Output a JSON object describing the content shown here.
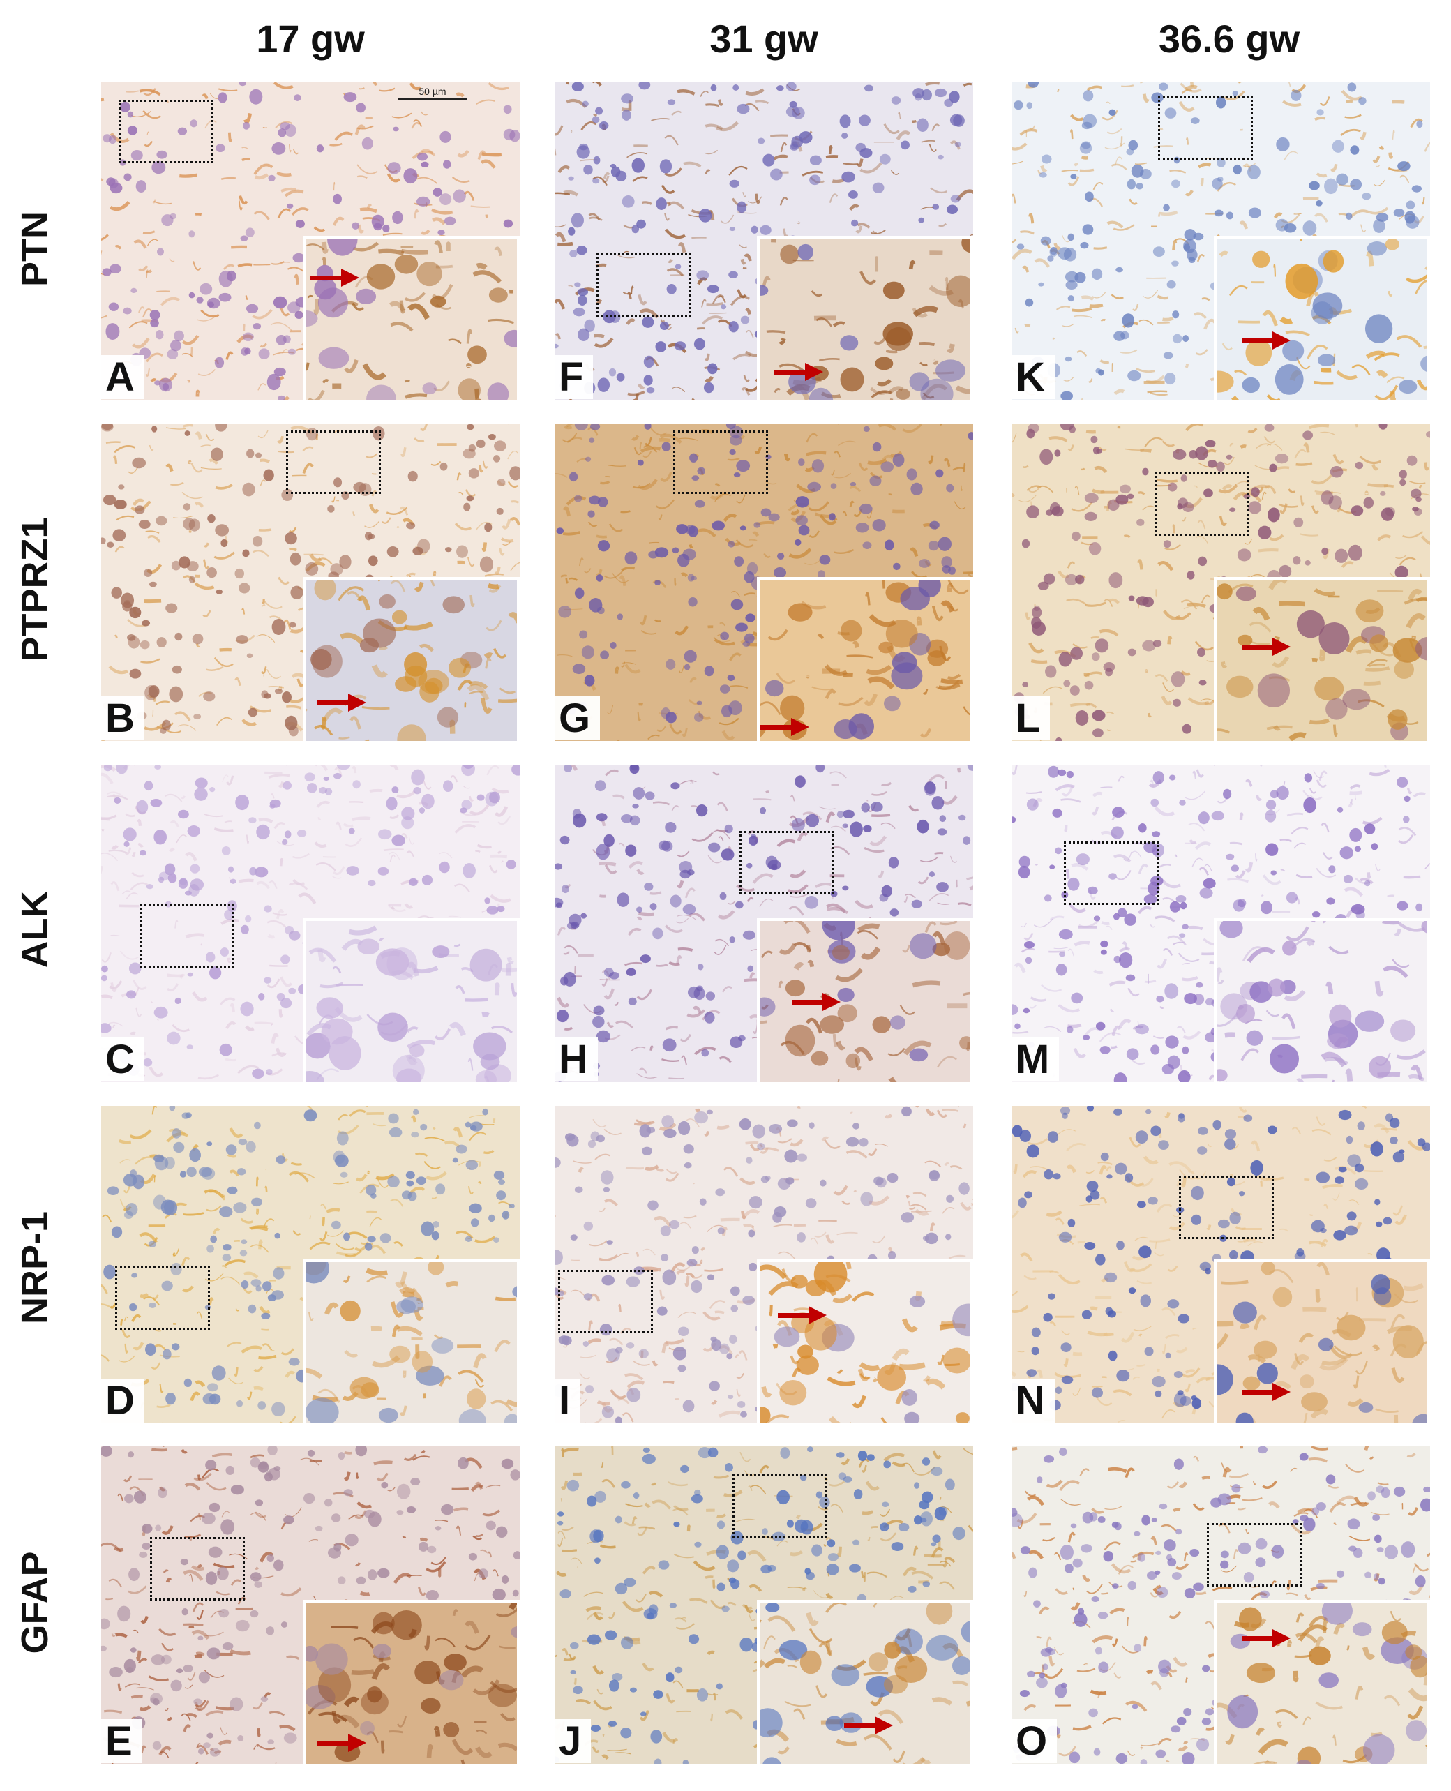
{
  "columns": [
    {
      "label": "17 gw"
    },
    {
      "label": "31 gw"
    },
    {
      "label": "36.6 gw"
    }
  ],
  "rows": [
    {
      "label": "PTN"
    },
    {
      "label": "PTPRZ1"
    },
    {
      "label": "ALK"
    },
    {
      "label": "NRP-1"
    },
    {
      "label": "GFAP"
    }
  ],
  "scale_bar": {
    "label": "50 µm"
  },
  "panels": [
    {
      "letter": "A",
      "row": 0,
      "col": 0,
      "bg": "#f3e6df",
      "stain": "#d99050",
      "nuclei": "#9a72b5",
      "inset_bg": "#efe0d2",
      "inset_stain": "#a8682a",
      "arrow": true
    },
    {
      "letter": "F",
      "row": 0,
      "col": 1,
      "bg": "#e9e6ef",
      "stain": "#9c5f34",
      "nuclei": "#6f68b5",
      "inset_bg": "#e8d8c8",
      "inset_stain": "#9a5a28",
      "arrow": true
    },
    {
      "letter": "K",
      "row": 0,
      "col": 2,
      "bg": "#eef2f7",
      "stain": "#d8a25c",
      "nuclei": "#6b82c0",
      "inset_bg": "#e9eef4",
      "inset_stain": "#e39a26",
      "arrow": true
    },
    {
      "letter": "B",
      "row": 1,
      "col": 0,
      "bg": "#f3e8dd",
      "stain": "#dba25a",
      "nuclei": "#a26b57",
      "inset_bg": "#d8d7e3",
      "inset_stain": "#d4902c",
      "arrow": true
    },
    {
      "letter": "G",
      "row": 1,
      "col": 1,
      "bg": "#dbb78a",
      "stain": "#c98b3c",
      "nuclei": "#6c5aa8",
      "inset_bg": "#eac898",
      "inset_stain": "#c27a2c",
      "arrow": true
    },
    {
      "letter": "L",
      "row": 1,
      "col": 2,
      "bg": "#efe0c5",
      "stain": "#d8a360",
      "nuclei": "#8f5877",
      "inset_bg": "#e9d6b2",
      "inset_stain": "#c88a38",
      "arrow": true
    },
    {
      "letter": "C",
      "row": 2,
      "col": 0,
      "bg": "#f4eef4",
      "stain": "#e3cfe0",
      "nuclei": "#b8a0d6",
      "inset_bg": "#f1ecf3",
      "inset_stain": "#c9b4df",
      "arrow": false
    },
    {
      "letter": "H",
      "row": 2,
      "col": 1,
      "bg": "#ece7f0",
      "stain": "#b589a0",
      "nuclei": "#6a58ad",
      "inset_bg": "#eadbd6",
      "inset_stain": "#a7683f",
      "arrow": true
    },
    {
      "letter": "M",
      "row": 2,
      "col": 2,
      "bg": "#f6f3f7",
      "stain": "#cdb9df",
      "nuclei": "#8d70c3",
      "inset_bg": "#f4f1f5",
      "inset_stain": "#b59ad2",
      "arrow": false
    },
    {
      "letter": "D",
      "row": 3,
      "col": 0,
      "bg": "#eee3cc",
      "stain": "#e0aa45",
      "nuclei": "#7b8cbe",
      "inset_bg": "#ede6df",
      "inset_stain": "#d89845",
      "arrow": false
    },
    {
      "letter": "I",
      "row": 3,
      "col": 1,
      "bg": "#f1e9e6",
      "stain": "#d8a890",
      "nuclei": "#9c90bd",
      "inset_bg": "#f2ece8",
      "inset_stain": "#d88a2a",
      "arrow": true
    },
    {
      "letter": "N",
      "row": 3,
      "col": 2,
      "bg": "#f0e0ca",
      "stain": "#e8c28a",
      "nuclei": "#4d5fb5",
      "inset_bg": "#efd9c0",
      "inset_stain": "#d9a868",
      "arrow": true
    },
    {
      "letter": "E",
      "row": 4,
      "col": 0,
      "bg": "#eadbd7",
      "stain": "#a85a38",
      "nuclei": "#a88ba0",
      "inset_bg": "#d8b28a",
      "inset_stain": "#8e4a1e",
      "arrow": true
    },
    {
      "letter": "J",
      "row": 4,
      "col": 1,
      "bg": "#e6dcc8",
      "stain": "#cc9a4a",
      "nuclei": "#5574c0",
      "inset_bg": "#ebe3d8",
      "inset_stain": "#c98838",
      "arrow": true
    },
    {
      "letter": "O",
      "row": 4,
      "col": 2,
      "bg": "#f0eee8",
      "stain": "#c97b3a",
      "nuclei": "#8a79c0",
      "inset_bg": "#eee6d8",
      "inset_stain": "#c6822e",
      "arrow": true
    }
  ]
}
